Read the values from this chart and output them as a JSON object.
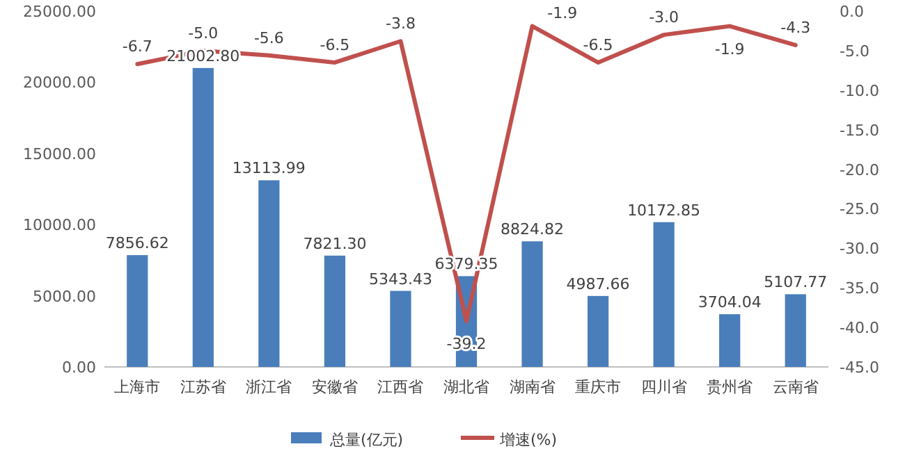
{
  "chart_data": {
    "type": "bar",
    "categories": [
      "上海市",
      "江苏省",
      "浙江省",
      "安徽省",
      "江西省",
      "湖北省",
      "湖南省",
      "重庆市",
      "四川省",
      "贵州省",
      "云南省"
    ],
    "series": [
      {
        "name": "总量(亿元)",
        "color": "#4a7ebb",
        "values": [
          7856.62,
          21002.8,
          13113.99,
          7821.3,
          5343.43,
          6379.35,
          8824.82,
          4987.66,
          10172.85,
          3704.04,
          5107.77
        ],
        "value_labels": [
          "7856.62",
          "21002.80",
          "13113.99",
          "7821.30",
          "5343.43",
          "6379.35",
          "8824.82",
          "4987.66",
          "10172.85",
          "3704.04",
          "5107.77"
        ]
      },
      {
        "name": "增速(%)",
        "type": "line",
        "axis": "y2",
        "color": "#c0504d",
        "values": [
          -6.7,
          -5.0,
          -5.6,
          -6.5,
          -3.8,
          -39.2,
          -1.9,
          -6.5,
          -3.0,
          -1.9,
          -4.3
        ],
        "value_labels": [
          "-6.7",
          "-5.0",
          "-5.6",
          "-6.5",
          "-3.8",
          "-39.2",
          "-1.9",
          "-6.5",
          "-3.0",
          "-1.9",
          "-4.3"
        ]
      }
    ],
    "ylim": [
      0,
      25000
    ],
    "yticks": [
      {
        "value": 0,
        "label": "0.00"
      },
      {
        "value": 5000,
        "label": "5000.00"
      },
      {
        "value": 10000,
        "label": "10000.00"
      },
      {
        "value": 15000,
        "label": "15000.00"
      },
      {
        "value": 20000,
        "label": "20000.00"
      },
      {
        "value": 25000,
        "label": "25000.00"
      }
    ],
    "y2lim": [
      -45,
      0
    ],
    "y2ticks": [
      {
        "value": 0,
        "label": "0.0"
      },
      {
        "value": -5,
        "label": "-5.0"
      },
      {
        "value": -10,
        "label": "-10.0"
      },
      {
        "value": -15,
        "label": "-15.0"
      },
      {
        "value": -20,
        "label": "-20.0"
      },
      {
        "value": -25,
        "label": "-25.0"
      },
      {
        "value": -30,
        "label": "-30.0"
      },
      {
        "value": -35,
        "label": "-35.0"
      },
      {
        "value": -40,
        "label": "-40.0"
      },
      {
        "value": -45,
        "label": "-45.0"
      }
    ],
    "legend": "bottom"
  }
}
